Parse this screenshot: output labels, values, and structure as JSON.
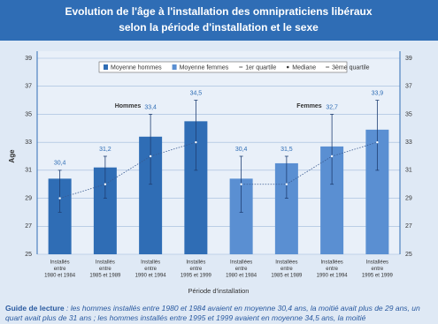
{
  "chart_data": {
    "type": "bar",
    "title": [
      "Evolution de l'âge à l'installation des omnipraticiens libéraux",
      "selon la période d'installation et le sexe"
    ],
    "y_label": "Age",
    "x_label": "Période d'installation",
    "categories": [
      [
        "Installés",
        "entre",
        "1980 et 1984"
      ],
      [
        "Installés",
        "entre",
        "1985 et 1989"
      ],
      [
        "Installés",
        "entre",
        "1990 et 1994"
      ],
      [
        "Installés",
        "entre",
        "1995 et 1999"
      ],
      [
        "Installées",
        "entre",
        "1980 et 1984"
      ],
      [
        "Installées",
        "entre",
        "1985 et 1989"
      ],
      [
        "Installées",
        "entre",
        "1990 et 1994"
      ],
      [
        "Installées",
        "entre",
        "1995 et 1999"
      ]
    ],
    "series": [
      {
        "name": "Moyenne hommes",
        "color": "#2f6db5",
        "values": [
          30.4,
          31.2,
          33.4,
          34.5,
          null,
          null,
          null,
          null
        ],
        "value_labels": [
          "30,4",
          "31,2",
          "33,4",
          "34,5",
          null,
          null,
          null,
          null
        ]
      },
      {
        "name": "Moyenne femmes",
        "color": "#5a8fd2",
        "values": [
          null,
          null,
          null,
          null,
          30.4,
          31.5,
          32.7,
          33.9
        ],
        "value_labels": [
          null,
          null,
          null,
          null,
          "30,4",
          "31,5",
          "32,7",
          "33,9"
        ]
      }
    ],
    "quartiles": [
      {
        "name": "1er quartile",
        "values": [
          28,
          29,
          30,
          31,
          28,
          29,
          30,
          31
        ]
      },
      {
        "name": "Mediane",
        "values": [
          29,
          30,
          32,
          33,
          30,
          30,
          32,
          33
        ]
      },
      {
        "name": "3ème quartile",
        "values": [
          31,
          32,
          35,
          36,
          32,
          32,
          35,
          36
        ]
      }
    ],
    "group_labels": [
      {
        "text": "Hommes",
        "index": 1.5
      },
      {
        "text": "Femmes",
        "index": 5.5
      }
    ],
    "ylim": [
      25,
      39
    ],
    "yticks": [
      25,
      27,
      29,
      31,
      33,
      35,
      37,
      39
    ],
    "grid": true,
    "footnote": {
      "lead": "Guide de lecture",
      "text": " : les hommes installés entre 1980 et 1984 avaient en moyenne 30,4 ans, la moitié avait plus de 29 ans, un quart avait plus de 31 ans ; les hommes installés entre 1995 et 1999 avaient en moyenne 34,5 ans, la moitié"
    }
  }
}
